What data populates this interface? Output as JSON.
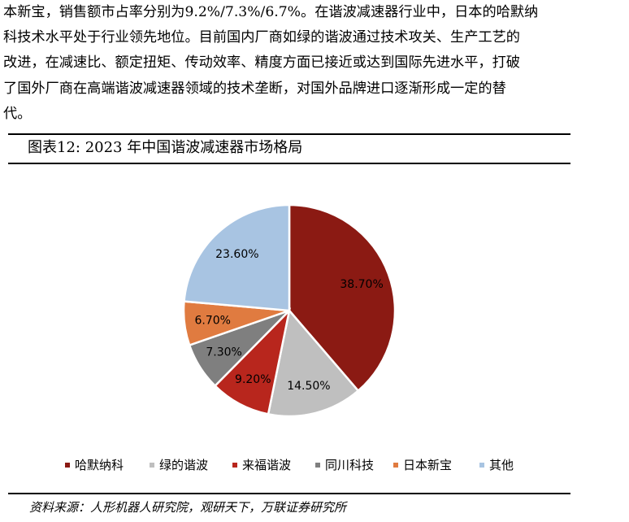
{
  "paragraph": {
    "lines": [
      "本新宝，销售额市占率分别为9.2%/7.3%/6.7%。在谐波减速器行业中，日本的哈默纳",
      "科技术水平处于行业领先地位。目前国内厂商如绿的谐波通过技术攻关、生产工艺的",
      "改进，在减速比、额定扭矩、传动效率、精度方面已接近或达到国际先进水平，打破",
      "了国外厂商在高端谐波减速器领域的技术垄断，对国外品牌进口逐渐形成一定的替",
      "代。"
    ]
  },
  "figure": {
    "title": "图表12:  2023 年中国谐波减速器市场格局",
    "source": "资料来源：人形机器人研究院，观研天下，万联证券研究所"
  },
  "chart_data": {
    "type": "pie",
    "title": "",
    "start_angle_deg": 0,
    "direction": "clockwise",
    "legend_placement": "bottom",
    "slices": [
      {
        "name": "哈默纳科",
        "value": 38.7,
        "label": "38.70%",
        "color": "#8B1A13"
      },
      {
        "name": "绿的谐波",
        "value": 14.5,
        "label": "14.50%",
        "color": "#BFBFBF"
      },
      {
        "name": "来福谐波",
        "value": 9.2,
        "label": "9.20%",
        "color": "#B8261D"
      },
      {
        "name": "同川科技",
        "value": 7.3,
        "label": "7.30%",
        "color": "#7F7F7F"
      },
      {
        "name": "日本新宝",
        "value": 6.7,
        "label": "6.70%",
        "color": "#E07B40"
      },
      {
        "name": "其他",
        "value": 23.6,
        "label": "23.60%",
        "color": "#A8C4E2"
      }
    ]
  }
}
